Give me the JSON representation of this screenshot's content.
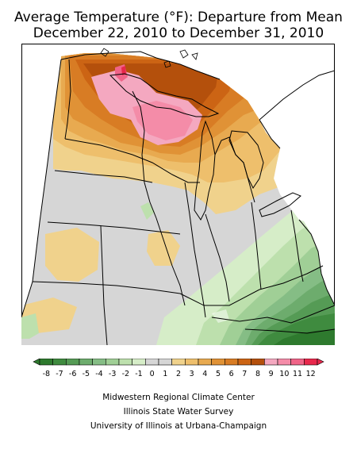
{
  "title_line1": "Average Temperature (°F): Departure from Mean",
  "title_line2": "December 22, 2010 to December 31, 2010",
  "legend": {
    "labels": [
      "-8",
      "-7",
      "-6",
      "-5",
      "-4",
      "-3",
      "-2",
      "-1",
      "0",
      "1",
      "2",
      "3",
      "4",
      "5",
      "6",
      "7",
      "8",
      "9",
      "10",
      "11",
      "12"
    ],
    "colors": [
      "#2e7a2e",
      "#3f8b3f",
      "#559b55",
      "#6dac6d",
      "#85bd85",
      "#a0cf96",
      "#bde0ad",
      "#d6edc8",
      "#d6d6d6",
      "#d6d6d6",
      "#f0d28c",
      "#eebf6c",
      "#e8aa50",
      "#e09236",
      "#d87c24",
      "#cc6414",
      "#b4500c",
      "#f4a8c0",
      "#f48ca8",
      "#f06488",
      "#e8284c"
    ]
  },
  "footer": {
    "line1": "Midwestern Regional Climate Center",
    "line2": "Illinois State Water Survey",
    "line3": "University of Illinois at Urbana-Champaign"
  }
}
